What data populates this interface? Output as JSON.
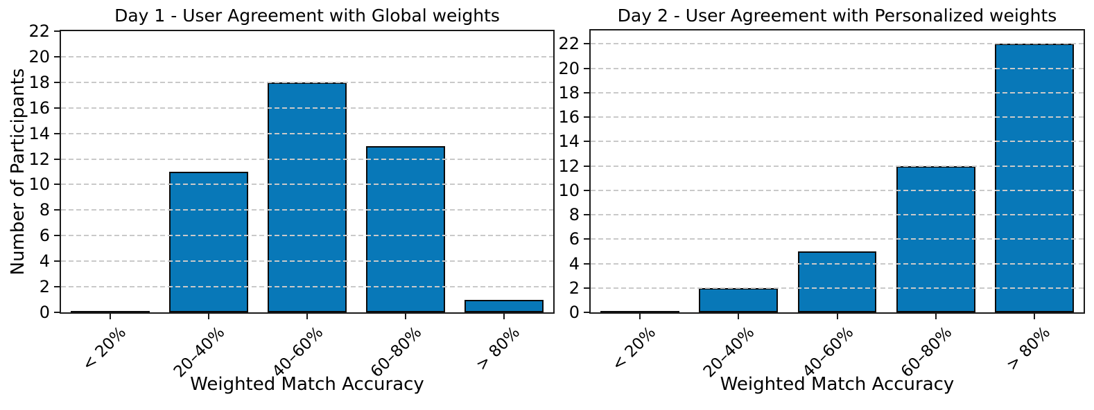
{
  "figure": {
    "background": "#ffffff"
  },
  "chart_data": [
    {
      "type": "bar",
      "title": "Day 1 - User Agreement with Global weights",
      "categories": [
        "< 20%",
        "20–40%",
        "40–60%",
        "60–80%",
        "> 80%"
      ],
      "values": [
        0,
        11,
        18,
        13,
        1
      ],
      "xlabel": "Weighted Match Accuracy",
      "ylabel": "Number of Participants",
      "ylim": [
        0,
        22
      ],
      "yticks": [
        0,
        2,
        4,
        6,
        8,
        10,
        12,
        14,
        16,
        18,
        20,
        22
      ],
      "grid": "horizontal-dashed",
      "legend": "none",
      "bar_color": "#0878b8",
      "bar_edge_color": "#0a0a0a",
      "grid_color": "#c9c9c9",
      "spine_color": "#1a1a1a"
    },
    {
      "type": "bar",
      "title": "Day 2 - User Agreement with Personalized weights",
      "categories": [
        "< 20%",
        "20–40%",
        "40–60%",
        "60–80%",
        "> 80%"
      ],
      "values": [
        0,
        2,
        5,
        12,
        22
      ],
      "xlabel": "Weighted Match Accuracy",
      "ylabel": "",
      "ylim": [
        0,
        23.1
      ],
      "yticks": [
        0,
        2,
        4,
        6,
        8,
        10,
        12,
        14,
        16,
        18,
        20,
        22
      ],
      "grid": "horizontal-dashed",
      "legend": "none",
      "bar_color": "#0878b8",
      "bar_edge_color": "#0a0a0a",
      "grid_color": "#c9c9c9",
      "spine_color": "#1a1a1a"
    }
  ]
}
